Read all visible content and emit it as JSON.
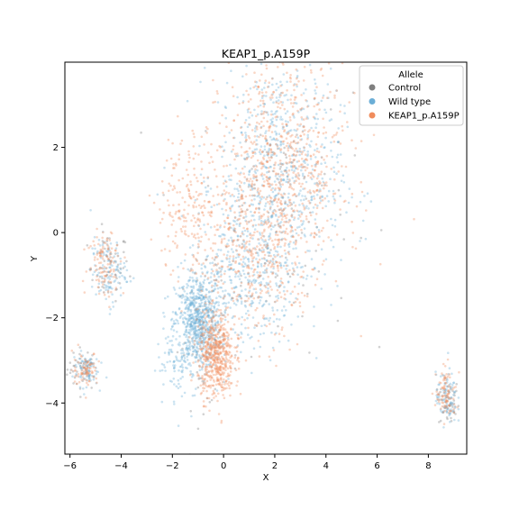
{
  "chart_data": {
    "type": "scatter",
    "title": "KEAP1_p.A159P",
    "xlabel": "X",
    "ylabel": "Y",
    "xlim": [
      -6.2,
      9.5
    ],
    "ylim": [
      -5.2,
      4.0
    ],
    "xticks": [
      -6,
      -4,
      -2,
      0,
      2,
      4,
      6,
      8
    ],
    "yticks": [
      -4,
      -2,
      0,
      2
    ],
    "grid": false,
    "legend": {
      "title": "Allele",
      "placement": "top-right"
    },
    "series": [
      {
        "name": "Control",
        "color": "#7f7f7f",
        "clusters": [
          {
            "cx": -5.5,
            "cy": -3.2,
            "sx": 0.3,
            "sy": 0.25,
            "n": 40
          },
          {
            "cx": -4.5,
            "cy": -0.8,
            "sx": 0.4,
            "sy": 0.4,
            "n": 50
          },
          {
            "cx": 8.8,
            "cy": -4.0,
            "sx": 0.2,
            "sy": 0.3,
            "n": 40
          },
          {
            "cx": 2.0,
            "cy": 0.5,
            "sx": 1.5,
            "sy": 1.6,
            "n": 120
          },
          {
            "cx": -0.8,
            "cy": -2.5,
            "sx": 0.5,
            "sy": 0.8,
            "n": 60
          }
        ]
      },
      {
        "name": "Wild type",
        "color": "#6baed6",
        "clusters": [
          {
            "cx": -1.0,
            "cy": -2.1,
            "sx": 0.45,
            "sy": 0.55,
            "n": 700
          },
          {
            "cx": 2.2,
            "cy": 1.3,
            "sx": 1.2,
            "sy": 1.4,
            "n": 700
          },
          {
            "cx": 0.8,
            "cy": -1.0,
            "sx": 1.0,
            "sy": 0.9,
            "n": 350
          },
          {
            "cx": -4.5,
            "cy": -0.9,
            "sx": 0.35,
            "sy": 0.4,
            "n": 120
          },
          {
            "cx": -5.4,
            "cy": -3.2,
            "sx": 0.25,
            "sy": 0.2,
            "n": 90
          },
          {
            "cx": 8.7,
            "cy": -3.9,
            "sx": 0.2,
            "sy": 0.3,
            "n": 100
          },
          {
            "cx": -1.8,
            "cy": -3.0,
            "sx": 0.4,
            "sy": 0.5,
            "n": 80
          }
        ]
      },
      {
        "name": "KEAP1_p.A159P",
        "color": "#f08c5c",
        "clusters": [
          {
            "cx": -0.3,
            "cy": -2.9,
            "sx": 0.35,
            "sy": 0.5,
            "n": 550
          },
          {
            "cx": 2.3,
            "cy": 1.5,
            "sx": 1.2,
            "sy": 1.3,
            "n": 750
          },
          {
            "cx": -1.2,
            "cy": 0.6,
            "sx": 0.7,
            "sy": 0.9,
            "n": 220
          },
          {
            "cx": 1.0,
            "cy": -0.8,
            "sx": 1.0,
            "sy": 0.9,
            "n": 300
          },
          {
            "cx": -4.6,
            "cy": -0.7,
            "sx": 0.35,
            "sy": 0.4,
            "n": 110
          },
          {
            "cx": -5.4,
            "cy": -3.2,
            "sx": 0.25,
            "sy": 0.2,
            "n": 80
          },
          {
            "cx": 8.7,
            "cy": -3.8,
            "sx": 0.2,
            "sy": 0.3,
            "n": 90
          }
        ]
      }
    ]
  }
}
